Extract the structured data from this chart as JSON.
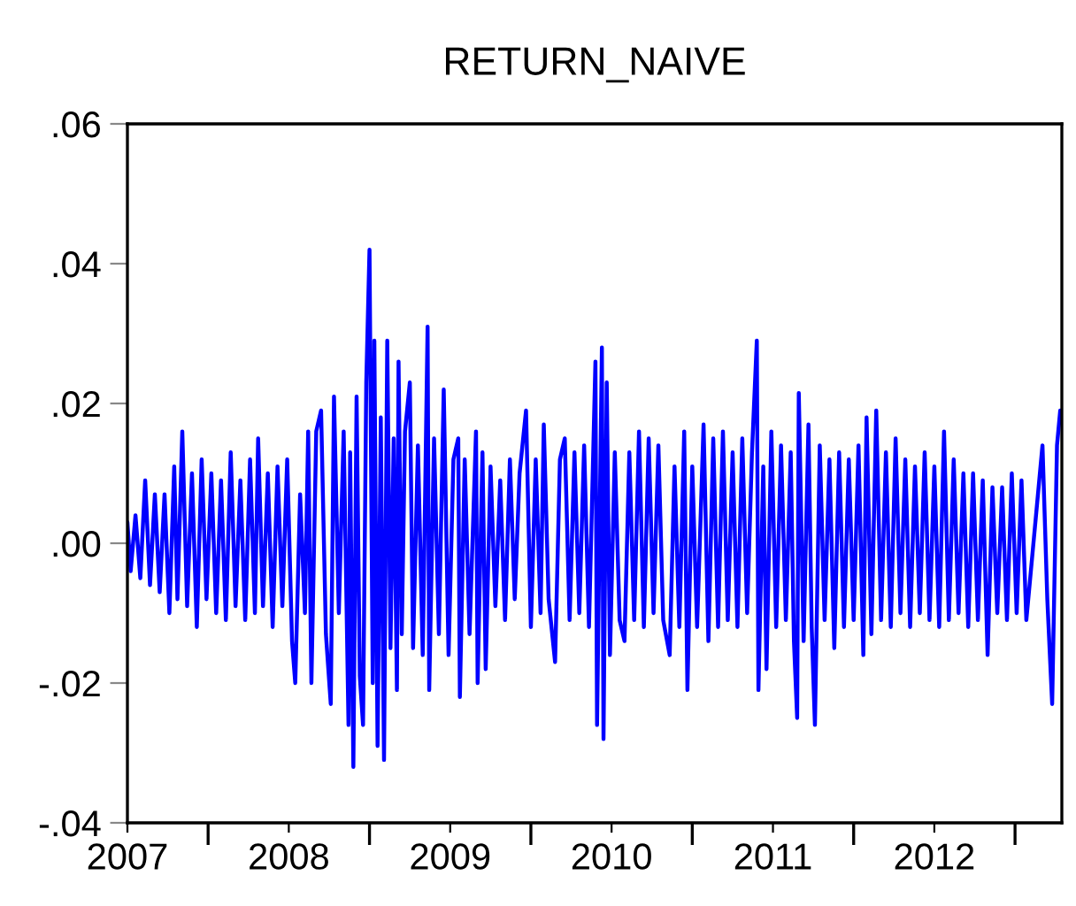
{
  "chart_data": {
    "type": "line",
    "title": "RETURN_NAIVE",
    "x": [
      2007.0,
      2007.02,
      2007.05,
      2007.08,
      2007.11,
      2007.14,
      2007.17,
      2007.2,
      2007.23,
      2007.26,
      2007.29,
      2007.31,
      2007.34,
      2007.37,
      2007.4,
      2007.43,
      2007.46,
      2007.49,
      2007.52,
      2007.55,
      2007.58,
      2007.61,
      2007.64,
      2007.67,
      2007.7,
      2007.73,
      2007.76,
      2007.79,
      2007.81,
      2007.84,
      2007.87,
      2007.9,
      2007.93,
      2007.96,
      2007.99,
      2008.02,
      2008.04,
      2008.07,
      2008.1,
      2008.12,
      2008.14,
      2008.17,
      2008.2,
      2008.23,
      2008.26,
      2008.28,
      2008.31,
      2008.34,
      2008.37,
      2008.38,
      2008.4,
      2008.42,
      2008.44,
      2008.46,
      2008.48,
      2008.5,
      2008.52,
      2008.53,
      2008.55,
      2008.57,
      2008.59,
      2008.61,
      2008.63,
      2008.65,
      2008.67,
      2008.68,
      2008.7,
      2008.72,
      2008.75,
      2008.77,
      2008.8,
      2008.83,
      2008.86,
      2008.87,
      2008.9,
      2008.93,
      2008.96,
      2008.99,
      2009.02,
      2009.05,
      2009.06,
      2009.09,
      2009.12,
      2009.16,
      2009.17,
      2009.2,
      2009.22,
      2009.25,
      2009.28,
      2009.31,
      2009.34,
      2009.37,
      2009.4,
      2009.43,
      2009.47,
      2009.5,
      2009.53,
      2009.56,
      2009.58,
      2009.61,
      2009.65,
      2009.68,
      2009.71,
      2009.74,
      2009.77,
      2009.8,
      2009.83,
      2009.86,
      2009.9,
      2009.91,
      2009.94,
      2009.95,
      2009.97,
      2009.99,
      2010.02,
      2010.05,
      2010.08,
      2010.11,
      2010.14,
      2010.17,
      2010.2,
      2010.23,
      2010.26,
      2010.29,
      2010.32,
      2010.36,
      2010.39,
      2010.42,
      2010.45,
      2010.47,
      2010.5,
      2010.53,
      2010.57,
      2010.6,
      2010.63,
      2010.66,
      2010.69,
      2010.72,
      2010.75,
      2010.78,
      2010.81,
      2010.84,
      2010.87,
      2010.9,
      2010.91,
      2010.94,
      2010.96,
      2010.99,
      2011.02,
      2011.05,
      2011.08,
      2011.11,
      2011.13,
      2011.15,
      2011.16,
      2011.19,
      2011.22,
      2011.24,
      2011.26,
      2011.29,
      2011.32,
      2011.35,
      2011.38,
      2011.41,
      2011.44,
      2011.47,
      2011.5,
      2011.53,
      2011.56,
      2011.58,
      2011.61,
      2011.64,
      2011.67,
      2011.7,
      2011.73,
      2011.76,
      2011.79,
      2011.82,
      2011.85,
      2011.88,
      2011.91,
      2011.94,
      2011.97,
      2012.0,
      2012.03,
      2012.06,
      2012.09,
      2012.12,
      2012.15,
      2012.18,
      2012.21,
      2012.24,
      2012.27,
      2012.3,
      2012.33,
      2012.36,
      2012.39,
      2012.42,
      2012.45,
      2012.48,
      2012.51,
      2012.54,
      2012.57,
      2012.67,
      2012.7,
      2012.73,
      2012.76,
      2012.78
    ],
    "values": [
      0.003,
      -0.004,
      0.004,
      -0.005,
      0.009,
      -0.006,
      0.007,
      -0.007,
      0.007,
      -0.01,
      0.011,
      -0.008,
      0.016,
      -0.009,
      0.01,
      -0.012,
      0.012,
      -0.008,
      0.01,
      -0.01,
      0.009,
      -0.011,
      0.013,
      -0.009,
      0.009,
      -0.011,
      0.012,
      -0.01,
      0.015,
      -0.009,
      0.01,
      -0.012,
      0.011,
      -0.009,
      0.012,
      -0.014,
      -0.02,
      0.007,
      -0.01,
      0.016,
      -0.02,
      0.016,
      0.019,
      -0.013,
      -0.023,
      0.021,
      -0.01,
      0.016,
      -0.026,
      0.013,
      -0.032,
      0.021,
      -0.019,
      -0.026,
      0.023,
      0.042,
      -0.02,
      0.029,
      -0.029,
      0.018,
      -0.031,
      0.029,
      -0.015,
      0.015,
      -0.021,
      0.026,
      -0.013,
      0.016,
      0.023,
      -0.015,
      0.014,
      -0.016,
      0.031,
      -0.021,
      0.015,
      -0.013,
      0.022,
      -0.016,
      0.012,
      0.015,
      -0.022,
      0.012,
      -0.013,
      0.016,
      -0.02,
      0.013,
      -0.018,
      0.011,
      -0.009,
      0.009,
      -0.011,
      0.012,
      -0.008,
      0.01,
      0.019,
      -0.012,
      0.012,
      -0.01,
      0.017,
      -0.008,
      -0.017,
      0.012,
      0.015,
      -0.011,
      0.013,
      -0.01,
      0.014,
      -0.012,
      0.026,
      -0.026,
      0.028,
      -0.028,
      0.023,
      -0.016,
      0.013,
      -0.011,
      -0.014,
      0.013,
      -0.011,
      0.016,
      -0.012,
      0.015,
      -0.01,
      0.014,
      -0.011,
      -0.016,
      0.011,
      -0.012,
      0.016,
      -0.021,
      0.011,
      -0.012,
      0.017,
      -0.014,
      0.015,
      -0.012,
      0.016,
      -0.011,
      0.013,
      -0.012,
      0.015,
      -0.01,
      0.013,
      0.029,
      -0.021,
      0.011,
      -0.018,
      0.016,
      -0.012,
      0.014,
      -0.011,
      0.013,
      -0.014,
      -0.025,
      0.0215,
      -0.014,
      0.017,
      -0.012,
      -0.026,
      0.014,
      -0.011,
      0.012,
      -0.015,
      0.013,
      -0.012,
      0.012,
      -0.011,
      0.014,
      -0.016,
      0.018,
      -0.013,
      0.019,
      -0.011,
      0.013,
      -0.012,
      0.015,
      -0.01,
      0.012,
      -0.012,
      0.011,
      -0.01,
      0.013,
      -0.011,
      0.011,
      -0.012,
      0.016,
      -0.011,
      0.012,
      -0.01,
      0.01,
      -0.012,
      0.01,
      -0.011,
      0.009,
      -0.016,
      0.008,
      -0.01,
      0.008,
      -0.011,
      0.01,
      -0.01,
      0.009,
      -0.011,
      0.014,
      -0.008,
      -0.023,
      0.014,
      0.019
    ],
    "color": "#0000ff",
    "xlim": [
      2007.0,
      2012.79
    ],
    "xticks": [
      2007,
      {
        "value": 2007.5,
        "label": null
      },
      2008,
      {
        "value": 2008.5,
        "label": null
      },
      2009,
      {
        "value": 2009.5,
        "label": null
      },
      2010,
      {
        "value": 2010.5,
        "label": null
      },
      2011,
      {
        "value": 2011.5,
        "label": null
      },
      2012,
      {
        "value": 2012.5,
        "label": null
      }
    ],
    "ylim": [
      -0.04,
      0.06
    ],
    "yticks": [
      {
        "value": -0.04,
        "label": "-.04"
      },
      {
        "value": -0.02,
        "label": "-.02"
      },
      {
        "value": 0.0,
        "label": ".00"
      },
      {
        "value": 0.02,
        "label": ".02"
      },
      {
        "value": 0.04,
        "label": ".04"
      },
      {
        "value": 0.06,
        "label": ".06"
      }
    ],
    "grid": false,
    "legend": false
  }
}
